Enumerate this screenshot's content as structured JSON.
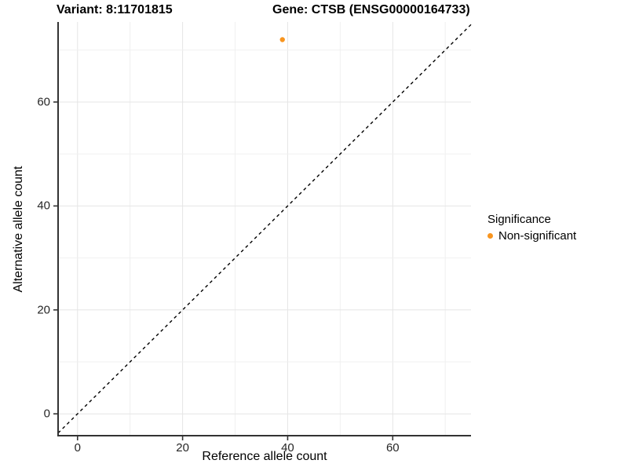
{
  "titles": {
    "variant": "Variant: 8:11701815",
    "gene": "Gene: CTSB (ENSG00000164733)"
  },
  "axes": {
    "x_label": "Reference allele count",
    "y_label": "Alternative allele count"
  },
  "legend": {
    "title": "Significance",
    "items": [
      {
        "label": "Non-significant",
        "color": "#F8951F"
      }
    ]
  },
  "colors": {
    "point": "#F8951F",
    "major_grid": "#E5E5E5",
    "minor_grid": "#F0F0F0",
    "axis_line": "#333333",
    "identity_line": "#000000"
  },
  "chart_data": {
    "type": "scatter",
    "title_left": "Variant: 8:11701815",
    "title_right": "Gene: CTSB (ENSG00000164733)",
    "xlabel": "Reference allele count",
    "ylabel": "Alternative allele count",
    "series": [
      {
        "name": "Non-significant",
        "color": "#F8951F",
        "points": [
          {
            "x": 39,
            "y": 72
          }
        ]
      }
    ],
    "identity_line": {
      "slope": 1,
      "intercept": 0,
      "style": "dashed"
    },
    "xlim": [
      -3.7,
      74.9
    ],
    "ylim": [
      -4.2,
      75.4
    ],
    "x_ticks": [
      0,
      20,
      40,
      60
    ],
    "y_ticks": [
      0,
      20,
      40,
      60
    ],
    "minor_step": 10,
    "grid": true,
    "legend_title": "Significance",
    "legend_position": "right"
  }
}
